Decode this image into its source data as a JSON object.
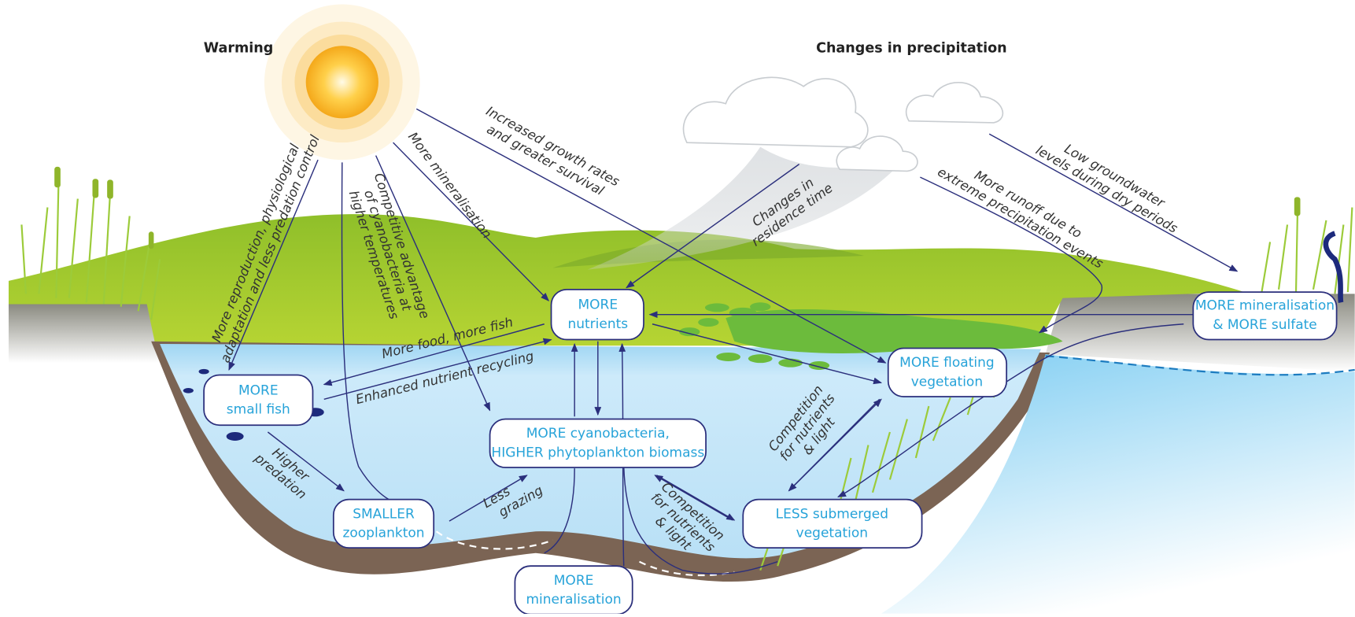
{
  "headings": {
    "warming": "Warming",
    "precipitation": "Changes in precipitation"
  },
  "nodes": [
    {
      "lines": [
        "MORE",
        "nutrients"
      ]
    },
    {
      "lines": [
        "MORE cyanobacteria,",
        "HIGHER phytoplankton biomass"
      ]
    },
    {
      "lines": [
        "MORE",
        "small fish"
      ]
    },
    {
      "lines": [
        "SMALLER",
        "zooplankton"
      ]
    },
    {
      "lines": [
        "MORE",
        "mineralisation"
      ]
    },
    {
      "lines": [
        "LESS submerged",
        "vegetation"
      ]
    },
    {
      "lines": [
        "MORE floating",
        "vegetation"
      ]
    },
    {
      "lines": [
        "MORE mineralisation",
        "& MORE sulfate"
      ]
    }
  ],
  "edges": [
    {
      "lines": [
        "More reproduction, physiological",
        "adaptation and less predation control"
      ]
    },
    {
      "lines": [
        "Competitive advantage",
        "of cyanobacteria at",
        "higher temperatures"
      ]
    },
    {
      "lines": [
        "More mineralisation"
      ]
    },
    {
      "lines": [
        "Increased growth rates",
        "and greater survival"
      ]
    },
    {
      "lines": [
        "Changes in",
        "residence time"
      ]
    },
    {
      "lines": [
        "More runoff due to",
        "extreme precipitation events"
      ]
    },
    {
      "lines": [
        "Low groundwater",
        "levels during dry periods"
      ]
    },
    {
      "lines": [
        "More food, more fish"
      ]
    },
    {
      "lines": [
        "Enhanced nutrient recycling"
      ]
    },
    {
      "lines": [
        "Higher",
        "predation"
      ]
    },
    {
      "lines": [
        "Less",
        "grazing"
      ]
    },
    {
      "lines": [
        "Competition",
        "for nutrients",
        "& light"
      ]
    },
    {
      "lines": [
        "Competition",
        "for nutrients",
        "& light"
      ]
    }
  ]
}
